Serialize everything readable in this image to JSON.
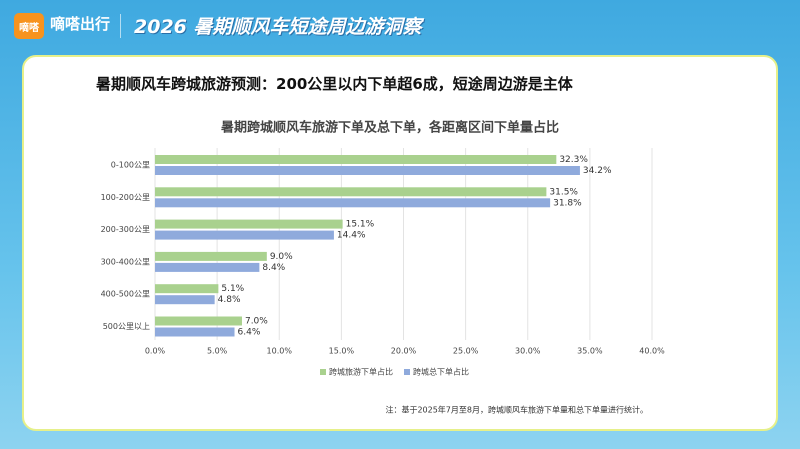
{
  "header": {
    "logo": "嘀嗒",
    "brand": "嘀嗒出行",
    "title": "2026 暑期顺风车短途周边游洞察"
  },
  "slide_title": "暑期顺风车跨城旅游预测：200公里以内下单超6成，短途周边游是主体",
  "note": "注：基于2025年7月至8月，跨城顺风车旅游下单量和总下单量进行统计。",
  "chart_data": {
    "type": "hbar",
    "title": "暑期跨城顺风车旅游下单及总下单，各距离区间下单量占比",
    "categories": [
      "0-100公里",
      "100-200公里",
      "200-300公里",
      "300-400公里",
      "400-500公里",
      "500公里以上"
    ],
    "series": [
      {
        "name": "跨城旅游下单占比",
        "color": "#a9d18e",
        "values": [
          32.3,
          31.5,
          15.1,
          9.0,
          5.1,
          7.0
        ],
        "value_labels": [
          "32.3%",
          "31.5%",
          "15.1%",
          "9.0%",
          "5.1%",
          "7.0%"
        ]
      },
      {
        "name": "跨城总下单占比",
        "color": "#8faadc",
        "values": [
          34.2,
          31.8,
          14.4,
          8.4,
          4.8,
          6.4
        ],
        "value_labels": [
          "34.2%",
          "31.8%",
          "14.4%",
          "8.4%",
          "4.8%",
          "6.4%"
        ]
      }
    ],
    "xlim": [
      0,
      40
    ],
    "xticks": [
      {
        "value": 0,
        "label": "0.0%"
      },
      {
        "value": 5,
        "label": "5.0%"
      },
      {
        "value": 10,
        "label": "10.0%"
      },
      {
        "value": 15,
        "label": "15.0%"
      },
      {
        "value": 20,
        "label": "20.0%"
      },
      {
        "value": 25,
        "label": "25.0%"
      },
      {
        "value": 30,
        "label": "30.0%"
      },
      {
        "value": 35,
        "label": "35.0%"
      },
      {
        "value": 40,
        "label": "40.0%"
      }
    ],
    "grid": true,
    "legend": "bottom"
  }
}
